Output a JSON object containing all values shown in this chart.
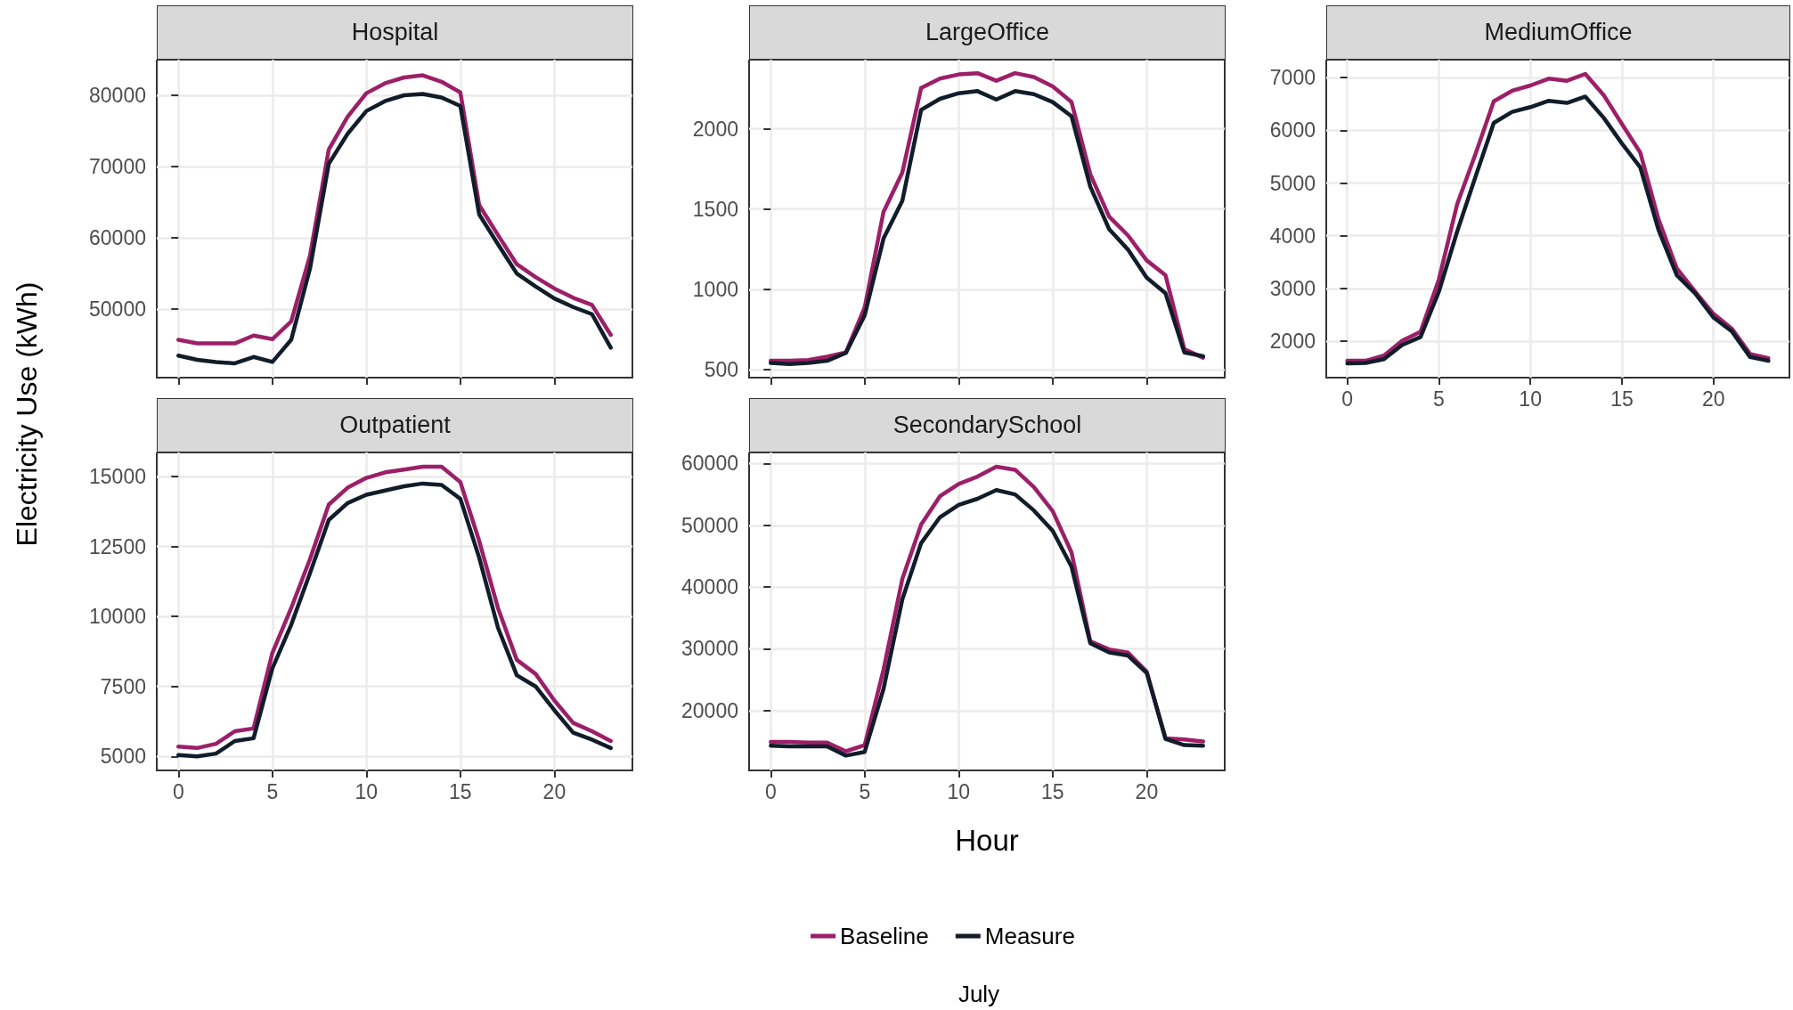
{
  "chart_data": [
    {
      "type": "line",
      "title": "Hospital",
      "ylabel": "Electricity Use (kWh)",
      "x": [
        0,
        1,
        2,
        3,
        4,
        5,
        6,
        7,
        8,
        9,
        10,
        11,
        12,
        13,
        14,
        15,
        16,
        17,
        18,
        19,
        20,
        21,
        22,
        23
      ],
      "xlim": [
        -1.15,
        24.15
      ],
      "xticks": [
        0,
        5,
        10,
        15,
        20
      ],
      "ylim": [
        40400,
        85000
      ],
      "yticks": [
        50000,
        60000,
        70000,
        80000
      ],
      "grid": true,
      "tick_labels": "y",
      "series": [
        {
          "color": "#9c1f68",
          "values": [
            45700,
            45200,
            45200,
            45200,
            46300,
            45800,
            48300,
            57500,
            72400,
            77000,
            80300,
            81700,
            82500,
            82800,
            81900,
            80400,
            64600,
            60400,
            56300,
            54500,
            52900,
            51600,
            50600,
            46400
          ]
        },
        {
          "color": "#111d2a",
          "values": [
            43500,
            42900,
            42600,
            42400,
            43300,
            42600,
            45700,
            55700,
            70400,
            74600,
            77800,
            79200,
            80000,
            80200,
            79700,
            78500,
            63300,
            59100,
            55000,
            53200,
            51500,
            50300,
            49300,
            44600
          ]
        }
      ]
    },
    {
      "type": "line",
      "title": "LargeOffice",
      "x": [
        0,
        1,
        2,
        3,
        4,
        5,
        6,
        7,
        8,
        9,
        10,
        11,
        12,
        13,
        14,
        15,
        16,
        17,
        18,
        19,
        20,
        21,
        22,
        23
      ],
      "xlim": [
        -1.15,
        24.15
      ],
      "xticks": [
        0,
        5,
        10,
        15,
        20
      ],
      "ylim": [
        450,
        2430
      ],
      "yticks": [
        500,
        1000,
        1500,
        2000
      ],
      "grid": true,
      "tick_labels": "y",
      "series": [
        {
          "color": "#9c1f68",
          "values": [
            555,
            555,
            560,
            580,
            607,
            887,
            1482,
            1727,
            2254,
            2312,
            2338,
            2346,
            2299,
            2346,
            2322,
            2264,
            2166,
            1717,
            1453,
            1336,
            1180,
            1088,
            627,
            574
          ]
        },
        {
          "color": "#111d2a",
          "values": [
            541,
            535,
            541,
            555,
            604,
            838,
            1316,
            1551,
            2117,
            2186,
            2221,
            2234,
            2182,
            2234,
            2215,
            2166,
            2078,
            1639,
            1375,
            1248,
            1072,
            975,
            607,
            584
          ]
        }
      ]
    },
    {
      "type": "line",
      "title": "MediumOffice",
      "x": [
        0,
        1,
        2,
        3,
        4,
        5,
        6,
        7,
        8,
        9,
        10,
        11,
        12,
        13,
        14,
        15,
        16,
        17,
        18,
        19,
        20,
        21,
        22,
        23
      ],
      "xlim": [
        -1.15,
        24.15
      ],
      "xticks": [
        0,
        5,
        10,
        15,
        20
      ],
      "ylim": [
        1310,
        7340
      ],
      "yticks": [
        2000,
        3000,
        4000,
        5000,
        6000,
        7000
      ],
      "grid": true,
      "series": [
        {
          "color": "#9c1f68",
          "values": [
            1630,
            1630,
            1730,
            2010,
            2180,
            3170,
            4600,
            5550,
            6550,
            6750,
            6850,
            6980,
            6940,
            7070,
            6670,
            6120,
            5580,
            4310,
            3380,
            2940,
            2520,
            2240,
            1760,
            1680
          ]
        },
        {
          "color": "#111d2a",
          "values": [
            1580,
            1590,
            1660,
            1930,
            2080,
            2940,
            4080,
            5120,
            6140,
            6350,
            6440,
            6560,
            6520,
            6640,
            6240,
            5750,
            5300,
            4110,
            3250,
            2910,
            2450,
            2190,
            1700,
            1630
          ]
        }
      ]
    },
    {
      "type": "line",
      "title": "Outpatient",
      "x": [
        0,
        1,
        2,
        3,
        4,
        5,
        6,
        7,
        8,
        9,
        10,
        11,
        12,
        13,
        14,
        15,
        16,
        17,
        18,
        19,
        20,
        21,
        22,
        23
      ],
      "xlim": [
        -1.15,
        24.15
      ],
      "xticks": [
        0,
        5,
        10,
        15,
        20
      ],
      "ylim": [
        4500,
        15860
      ],
      "yticks": [
        5000,
        7500,
        10000,
        12500,
        15000
      ],
      "grid": true,
      "series": [
        {
          "color": "#9c1f68",
          "values": [
            5350,
            5300,
            5450,
            5900,
            6000,
            8700,
            10300,
            12050,
            14000,
            14600,
            14950,
            15150,
            15250,
            15350,
            15350,
            14800,
            12700,
            10300,
            8450,
            7950,
            7000,
            6200,
            5900,
            5550
          ]
        },
        {
          "color": "#111d2a",
          "values": [
            5050,
            5000,
            5100,
            5550,
            5650,
            8150,
            9700,
            11550,
            13450,
            14050,
            14350,
            14500,
            14650,
            14750,
            14700,
            14200,
            12100,
            9600,
            7900,
            7500,
            6650,
            5850,
            5600,
            5300
          ]
        }
      ]
    },
    {
      "type": "line",
      "title": "SecondarySchool",
      "xlabel": "Hour",
      "legend": "bottom",
      "annotations": [
        "July"
      ],
      "x": [
        0,
        1,
        2,
        3,
        4,
        5,
        6,
        7,
        8,
        9,
        10,
        11,
        12,
        13,
        14,
        15,
        16,
        17,
        18,
        19,
        20,
        21,
        22,
        23
      ],
      "xlim": [
        -1.15,
        24.15
      ],
      "xticks": [
        0,
        5,
        10,
        15,
        20
      ],
      "ylim": [
        10300,
        61800
      ],
      "yticks": [
        20000,
        30000,
        40000,
        50000,
        60000
      ],
      "grid": true,
      "series": [
        {
          "name": "Baseline",
          "color": "#9c1f68",
          "values": [
            14900,
            14900,
            14800,
            14800,
            13400,
            14400,
            26600,
            41300,
            50100,
            54700,
            56700,
            57900,
            59500,
            59000,
            56200,
            52300,
            45600,
            31200,
            29900,
            29400,
            26300,
            15500,
            15300,
            15000
          ]
        },
        {
          "name": "Measure",
          "color": "#111d2a",
          "values": [
            14300,
            14200,
            14200,
            14200,
            12700,
            13300,
            23500,
            38000,
            47100,
            51300,
            53300,
            54300,
            55700,
            55000,
            52400,
            49100,
            43300,
            30900,
            29400,
            28900,
            26100,
            15400,
            14400,
            14300
          ]
        }
      ]
    }
  ]
}
